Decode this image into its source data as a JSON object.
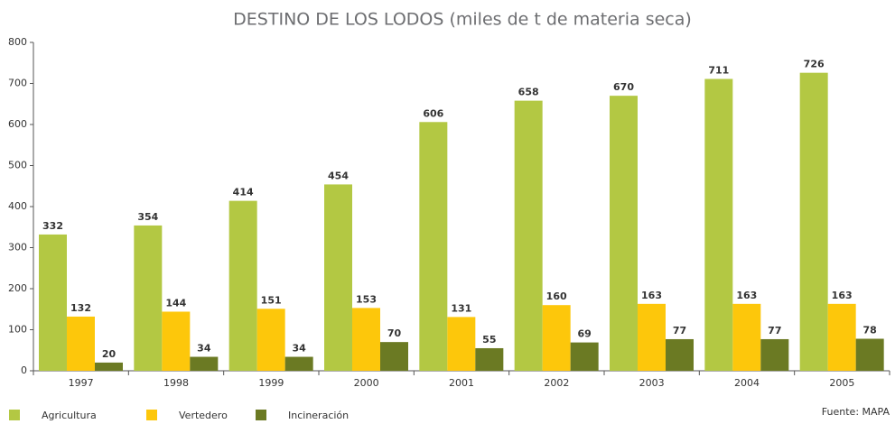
{
  "chart_data": {
    "type": "bar",
    "title": "DESTINO DE LOS LODOS (miles de t de materia seca)",
    "categories": [
      "1997",
      "1998",
      "1999",
      "2000",
      "2001",
      "2002",
      "2003",
      "2004",
      "2005"
    ],
    "series": [
      {
        "name": "Agricultura",
        "color": "#b3c843",
        "values": [
          332,
          354,
          414,
          454,
          606,
          658,
          670,
          711,
          726
        ]
      },
      {
        "name": "Vertedero",
        "color": "#fdc70b",
        "values": [
          132,
          144,
          151,
          153,
          131,
          160,
          163,
          163,
          163
        ]
      },
      {
        "name": "Incineración",
        "color": "#6b7a23",
        "values": [
          20,
          34,
          34,
          70,
          55,
          69,
          77,
          77,
          78
        ]
      }
    ],
    "ylim": [
      0,
      800
    ],
    "yticks": [
      0,
      100,
      200,
      300,
      400,
      500,
      600,
      700,
      800
    ],
    "grid": false,
    "legend": "bottom-left",
    "source": "Fuente: MAPA"
  }
}
